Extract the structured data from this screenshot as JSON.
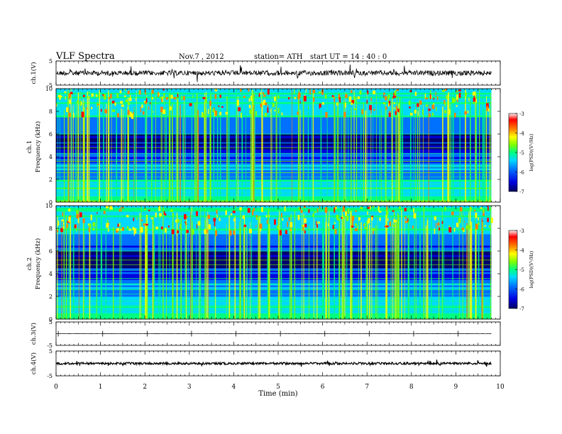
{
  "header": {
    "title": "VLF  Spectra",
    "date": "Nov.7  , 2012",
    "station": "station= ATH",
    "start": "start  UT  =   14 : 40 : 0"
  },
  "colors": {
    "spectrogram_scale": [
      "#000070",
      "#0000e0",
      "#0070ff",
      "#00d8ff",
      "#00ff80",
      "#80ff00",
      "#ffff00",
      "#ff8000",
      "#ff0000",
      "#ffffff"
    ],
    "waveform": "#000000"
  },
  "chart_data": [
    {
      "type": "line",
      "name": "ch1-waveform",
      "ylabel": "ch.1(V)",
      "ylim": [
        -5,
        5
      ],
      "yticks": [
        "5",
        "-5"
      ],
      "x_range_min": [
        0,
        9.8
      ],
      "values_approx": "noisy signal centered near 0 V, amplitude about ±1.5 V with frequent spikes"
    },
    {
      "type": "heatmap",
      "name": "ch1-spectrogram",
      "ylabel": "Frequency  (kHz)",
      "channel_label": "ch.1",
      "ylim": [
        0,
        10
      ],
      "yticks": [
        "0",
        "2",
        "4",
        "6",
        "8",
        "10"
      ],
      "colorbar": {
        "label": "log(PSD)(V²/Hz)",
        "range": [
          -7,
          -3
        ],
        "ticks": [
          "-3",
          "-4",
          "-5",
          "-6",
          "-7"
        ]
      }
    },
    {
      "type": "heatmap",
      "name": "ch2-spectrogram",
      "ylabel": "Frequency  (kHz)",
      "channel_label": "ch.2",
      "ylim": [
        0,
        10
      ],
      "yticks": [
        "0",
        "2",
        "4",
        "6",
        "8",
        "10"
      ],
      "colorbar": {
        "label": "log(PSD)(V²/Hz)",
        "range": [
          -7,
          -3
        ],
        "ticks": [
          "-3",
          "-4",
          "-5",
          "-6",
          "-7"
        ]
      }
    },
    {
      "type": "line",
      "name": "ch3-waveform",
      "ylabel": "ch.3(V)",
      "ylim": [
        -5,
        5
      ],
      "yticks": [
        "5",
        "-5"
      ],
      "values_approx": "flat near 0 V"
    },
    {
      "type": "line",
      "name": "ch4-waveform",
      "ylabel": "ch.4(V)",
      "ylim": [
        -5,
        5
      ],
      "yticks": [
        "5",
        "-5"
      ],
      "values_approx": "flat thick band near 0 V"
    }
  ],
  "xaxis": {
    "label": "Time  (min)",
    "ticks": [
      "0",
      "1",
      "2",
      "3",
      "4",
      "5",
      "6",
      "7",
      "8",
      "9",
      "10"
    ],
    "xlim": [
      0,
      10
    ]
  }
}
